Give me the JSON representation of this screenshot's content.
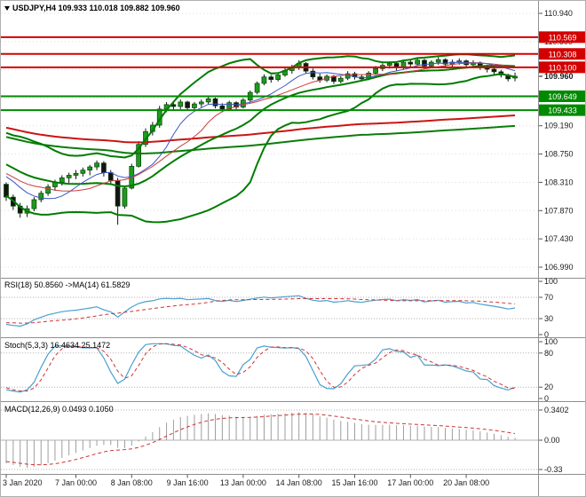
{
  "window": {
    "title": "USDJPY,H4 109.933 110.018 109.882 109.960",
    "symbol": "USDJPY",
    "timeframe": "H4"
  },
  "colors": {
    "up_candle": "#1d9b1d",
    "down_candle": "#141414",
    "wick": "#141414",
    "candle_border": "#073f07",
    "bollinger": "#007c00",
    "ma_fast": "#3c55c8",
    "ma_mid": "#c83c3c",
    "ma_long_red": "#cc1414",
    "ma_long_green": "#0b7c0b",
    "resistance": "#d40000",
    "support": "#008a00",
    "rsi_line": "#4aa0cf",
    "rsi_signal": "#cc3333",
    "stoch_main": "#4aa0cf",
    "stoch_signal": "#cc3333",
    "macd_hist": "#9e9e9e",
    "macd_signal": "#cc3333",
    "grid": "#dcdcdc",
    "level": "#b0b0b0",
    "axis_text": "#1a1a1a",
    "divider": "#8f8f8f"
  },
  "chart_data": {
    "type": "candlestick",
    "symbol": "USDJPY",
    "timeframe": "H4",
    "current_bar": {
      "open": 109.933,
      "high": 110.018,
      "low": 109.882,
      "close": 109.96
    },
    "price_marker": {
      "text": "109.960",
      "value": 109.96
    },
    "y_axis": {
      "labels": [
        {
          "text": "110.940",
          "value": 110.94
        },
        {
          "text": "110.500",
          "value": 110.5
        },
        {
          "text": "110.060",
          "value": 110.06
        },
        {
          "text": "109.620",
          "value": 109.62
        },
        {
          "text": "109.190",
          "value": 109.19
        },
        {
          "text": "108.750",
          "value": 108.75
        },
        {
          "text": "108.310",
          "value": 108.31
        },
        {
          "text": "107.870",
          "value": 107.87
        },
        {
          "text": "107.430",
          "value": 107.43
        },
        {
          "text": "106.990",
          "value": 106.99
        }
      ]
    },
    "hlines": [
      {
        "text": "110.569",
        "value": 110.569,
        "kind": "resistance"
      },
      {
        "text": "110.308",
        "value": 110.308,
        "kind": "resistance"
      },
      {
        "text": "110.100",
        "value": 110.1,
        "kind": "resistance"
      },
      {
        "text": "109.649",
        "value": 109.649,
        "kind": "support"
      },
      {
        "text": "109.433",
        "value": 109.433,
        "kind": "support"
      }
    ],
    "x_labels": [
      {
        "text": "3 Jan 2020",
        "bar": 0
      },
      {
        "text": "7 Jan 00:00",
        "bar": 10
      },
      {
        "text": "8 Jan 08:00",
        "bar": 18
      },
      {
        "text": "9 Jan 16:00",
        "bar": 26
      },
      {
        "text": "13 Jan 00:00",
        "bar": 34
      },
      {
        "text": "14 Jan 08:00",
        "bar": 42
      },
      {
        "text": "15 Jan 16:00",
        "bar": 50
      },
      {
        "text": "17 Jan 00:00",
        "bar": 58
      },
      {
        "text": "20 Jan 08:00",
        "bar": 66
      }
    ],
    "overlays": {
      "bollinger_period": 20,
      "bollinger_dev": 2,
      "ma_fast": 8,
      "ma_mid": 13,
      "ma_long": 96
    },
    "pre_closes": [
      109.62,
      109.65,
      109.68,
      109.7,
      109.66,
      109.6,
      109.55,
      109.58,
      109.52,
      109.48,
      109.45,
      109.5,
      109.55,
      109.6,
      109.57,
      109.5,
      109.45,
      109.4,
      109.35,
      109.3,
      109.25,
      109.3,
      109.35,
      109.28,
      109.2,
      109.1,
      109.0,
      108.9,
      108.8,
      108.7,
      108.72,
      108.75,
      108.7,
      108.6,
      108.5,
      108.45,
      108.4,
      108.52,
      108.6,
      108.55,
      108.45,
      108.38,
      108.32,
      108.28
    ],
    "candles": [
      [
        108.28,
        108.31,
        108.02,
        108.08
      ],
      [
        108.08,
        108.12,
        107.88,
        107.94
      ],
      [
        107.94,
        107.99,
        107.76,
        107.83
      ],
      [
        107.83,
        107.95,
        107.77,
        107.9
      ],
      [
        107.9,
        108.08,
        107.86,
        108.04
      ],
      [
        108.04,
        108.18,
        108.0,
        108.14
      ],
      [
        108.14,
        108.28,
        108.1,
        108.24
      ],
      [
        108.24,
        108.35,
        108.18,
        108.31
      ],
      [
        108.31,
        108.42,
        108.26,
        108.38
      ],
      [
        108.38,
        108.46,
        108.3,
        108.42
      ],
      [
        108.42,
        108.5,
        108.36,
        108.45
      ],
      [
        108.45,
        108.54,
        108.4,
        108.5
      ],
      [
        108.5,
        108.58,
        108.42,
        108.55
      ],
      [
        108.55,
        108.65,
        108.5,
        108.61
      ],
      [
        108.61,
        108.64,
        108.4,
        108.46
      ],
      [
        108.46,
        108.5,
        108.28,
        108.34
      ],
      [
        108.34,
        108.38,
        107.65,
        107.94
      ],
      [
        107.94,
        108.26,
        107.9,
        108.22
      ],
      [
        108.22,
        108.6,
        108.2,
        108.56
      ],
      [
        108.56,
        108.95,
        108.54,
        108.9
      ],
      [
        108.9,
        109.15,
        108.86,
        109.1
      ],
      [
        109.1,
        109.25,
        109.04,
        109.2
      ],
      [
        109.2,
        109.5,
        109.16,
        109.45
      ],
      [
        109.45,
        109.56,
        109.4,
        109.52
      ],
      [
        109.52,
        109.57,
        109.43,
        109.49
      ],
      [
        109.49,
        109.6,
        109.45,
        109.56
      ],
      [
        109.56,
        109.58,
        109.42,
        109.47
      ],
      [
        109.47,
        109.56,
        109.43,
        109.53
      ],
      [
        109.53,
        109.6,
        109.48,
        109.56
      ],
      [
        109.56,
        109.64,
        109.52,
        109.61
      ],
      [
        109.61,
        109.63,
        109.46,
        109.5
      ],
      [
        109.5,
        109.54,
        109.4,
        109.45
      ],
      [
        109.45,
        109.58,
        109.43,
        109.55
      ],
      [
        109.55,
        109.57,
        109.44,
        109.48
      ],
      [
        109.48,
        109.62,
        109.46,
        109.59
      ],
      [
        109.59,
        109.74,
        109.56,
        109.71
      ],
      [
        109.71,
        109.88,
        109.68,
        109.85
      ],
      [
        109.85,
        109.99,
        109.82,
        109.95
      ],
      [
        109.95,
        109.98,
        109.86,
        109.91
      ],
      [
        109.91,
        110.02,
        109.88,
        109.98
      ],
      [
        109.98,
        110.09,
        109.95,
        110.05
      ],
      [
        110.05,
        110.14,
        110.0,
        110.1
      ],
      [
        110.1,
        110.21,
        110.06,
        110.16
      ],
      [
        110.16,
        110.18,
        110.0,
        110.04
      ],
      [
        110.04,
        110.08,
        109.91,
        109.95
      ],
      [
        109.95,
        110.0,
        109.86,
        109.9
      ],
      [
        109.9,
        109.99,
        109.87,
        109.96
      ],
      [
        109.96,
        109.98,
        109.84,
        109.88
      ],
      [
        109.88,
        109.96,
        109.85,
        109.93
      ],
      [
        109.93,
        110.04,
        109.9,
        110.0
      ],
      [
        110.0,
        110.03,
        109.91,
        109.95
      ],
      [
        109.95,
        109.99,
        109.88,
        109.92
      ],
      [
        109.92,
        110.04,
        109.9,
        110.01
      ],
      [
        110.01,
        110.12,
        109.98,
        110.08
      ],
      [
        110.08,
        110.16,
        110.04,
        110.13
      ],
      [
        110.13,
        110.19,
        110.08,
        110.16
      ],
      [
        110.16,
        110.18,
        110.05,
        110.1
      ],
      [
        110.1,
        110.21,
        110.07,
        110.18
      ],
      [
        110.18,
        110.22,
        110.1,
        110.15
      ],
      [
        110.15,
        110.25,
        110.12,
        110.21
      ],
      [
        110.21,
        110.23,
        110.08,
        110.12
      ],
      [
        110.12,
        110.21,
        110.09,
        110.18
      ],
      [
        110.18,
        110.26,
        110.14,
        110.22
      ],
      [
        110.22,
        110.24,
        110.1,
        110.15
      ],
      [
        110.15,
        110.22,
        110.11,
        110.18
      ],
      [
        110.18,
        110.24,
        110.14,
        110.2
      ],
      [
        110.2,
        110.22,
        110.1,
        110.14
      ],
      [
        110.14,
        110.21,
        110.1,
        110.17
      ],
      [
        110.17,
        110.19,
        110.06,
        110.11
      ],
      [
        110.11,
        110.14,
        110.02,
        110.07
      ],
      [
        110.07,
        110.1,
        109.99,
        110.03
      ],
      [
        110.03,
        110.06,
        109.94,
        109.98
      ],
      [
        109.98,
        110.0,
        109.88,
        109.92
      ],
      [
        109.933,
        110.018,
        109.882,
        109.96
      ]
    ],
    "indicators": [
      {
        "id": "rsi",
        "label": "RSI(18) 50.8560 ->MA(14) 61.5829",
        "period": 18,
        "signal_period": 14,
        "levels": [
          70,
          30
        ],
        "last": 50.856,
        "signal_last": 61.5829,
        "axis": [
          {
            "text": "100",
            "value": 100
          },
          {
            "text": "70",
            "value": 70
          },
          {
            "text": "30",
            "value": 30
          },
          {
            "text": "0",
            "value": 0
          }
        ]
      },
      {
        "id": "stoch",
        "label": "Stoch(5,3,3) 16.4634 25.1472",
        "k": 5,
        "d": 3,
        "slowing": 3,
        "levels": [
          80,
          20
        ],
        "last": 16.4634,
        "signal_last": 25.1472,
        "axis": [
          {
            "text": "100",
            "value": 100
          },
          {
            "text": "80",
            "value": 80
          },
          {
            "text": "20",
            "value": 20
          },
          {
            "text": "0",
            "value": 0
          }
        ]
      },
      {
        "id": "macd",
        "label": "MACD(12,26,9) 0.0493 0.1050",
        "fast": 12,
        "slow": 26,
        "signal": 9,
        "last": 0.0493,
        "signal_last": 0.105,
        "axis": [
          {
            "text": "0.3402",
            "value": 0.3402
          },
          {
            "text": "0.00",
            "value": 0
          },
          {
            "text": "-0.33",
            "value": -0.33
          }
        ]
      }
    ]
  }
}
